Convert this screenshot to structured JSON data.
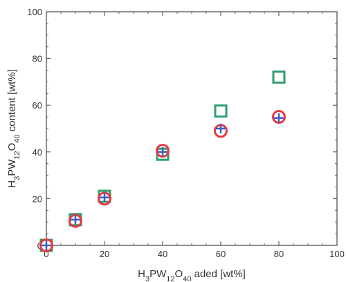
{
  "chart_data": {
    "type": "scatter",
    "title": "",
    "xlabel": {
      "base": "H",
      "parts": [
        [
          "3",
          true
        ],
        [
          "PW",
          false
        ],
        [
          "12",
          true
        ],
        [
          "O",
          false
        ],
        [
          "40",
          true
        ],
        [
          " aded [wt%]",
          false
        ]
      ]
    },
    "ylabel": {
      "base": "H",
      "parts": [
        [
          "3",
          true
        ],
        [
          "PW",
          false
        ],
        [
          "12",
          true
        ],
        [
          "O",
          false
        ],
        [
          "40",
          true
        ],
        [
          " content [wt%]",
          false
        ]
      ]
    },
    "xlim": [
      0,
      100
    ],
    "ylim": [
      0,
      100
    ],
    "xticks": [
      "0",
      "20",
      "40",
      "60",
      "80",
      "100"
    ],
    "yticks": [
      "0",
      "20",
      "40",
      "60",
      "80",
      "100"
    ],
    "grid": false,
    "series": [
      {
        "marker": "square",
        "color": "#2e9e6e",
        "x": [
          0,
          10,
          20,
          40,
          60,
          80
        ],
        "y": [
          0,
          11,
          21,
          39,
          57.5,
          72
        ]
      },
      {
        "marker": "circle",
        "color": "#e8383d",
        "x": [
          0,
          10,
          20,
          40,
          60,
          80
        ],
        "y": [
          0,
          10.5,
          20,
          40.5,
          49,
          55
        ]
      },
      {
        "marker": "cross",
        "color": "#3a5fc8",
        "x": [
          0,
          10,
          20,
          40,
          60,
          80
        ],
        "y": [
          0,
          11,
          20.5,
          40,
          50,
          54.5
        ]
      }
    ]
  }
}
